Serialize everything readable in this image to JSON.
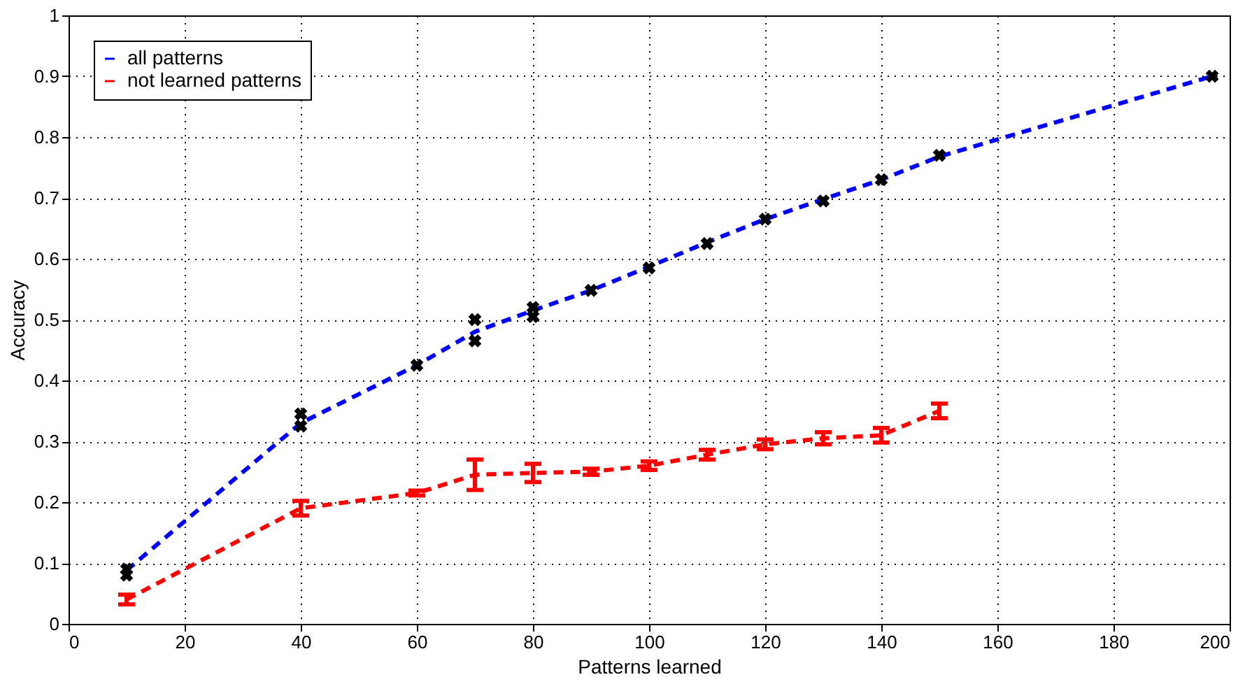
{
  "chart_data": {
    "type": "line",
    "xlabel": "Patterns learned",
    "ylabel": "Accuracy",
    "xlim": [
      0,
      200
    ],
    "xticks": [
      0,
      20,
      40,
      60,
      80,
      100,
      120,
      140,
      160,
      180,
      200
    ],
    "ylim": [
      0,
      1
    ],
    "yticks": [
      0,
      0.1,
      0.2,
      0.3,
      0.4,
      0.5,
      0.6,
      0.7,
      0.8,
      0.9,
      1
    ],
    "grid": true,
    "legend": "top left",
    "line_style": "dashed",
    "series": [
      {
        "name": "all patterns",
        "color": "#0000ff",
        "x": [
          10,
          40,
          60,
          70,
          80,
          90,
          100,
          110,
          120,
          130,
          140,
          150,
          197
        ],
        "values": [
          0.088,
          0.33,
          0.425,
          0.48,
          0.515,
          0.548,
          0.587,
          0.627,
          0.665,
          0.698,
          0.73,
          0.768,
          0.9
        ]
      },
      {
        "name": "not learned patterns",
        "color": "#ff0000",
        "x": [
          10,
          40,
          60,
          70,
          80,
          90,
          100,
          110,
          120,
          130,
          140,
          150
        ],
        "values": [
          0.04,
          0.19,
          0.215,
          0.245,
          0.248,
          0.25,
          0.26,
          0.278,
          0.295,
          0.305,
          0.31,
          0.35
        ],
        "errors": [
          0.008,
          0.012,
          0.004,
          0.025,
          0.015,
          0.005,
          0.007,
          0.008,
          0.008,
          0.01,
          0.012,
          0.012
        ]
      },
      {
        "type": "scatter",
        "marker": "cross",
        "color": "#000000",
        "x": [
          10,
          10,
          40,
          40,
          60,
          70,
          70,
          80,
          80,
          90,
          100,
          110,
          120,
          130,
          140,
          150,
          197
        ],
        "values": [
          0.08,
          0.09,
          0.325,
          0.345,
          0.425,
          0.465,
          0.5,
          0.505,
          0.52,
          0.548,
          0.585,
          0.625,
          0.665,
          0.695,
          0.73,
          0.77,
          0.9
        ]
      }
    ]
  }
}
